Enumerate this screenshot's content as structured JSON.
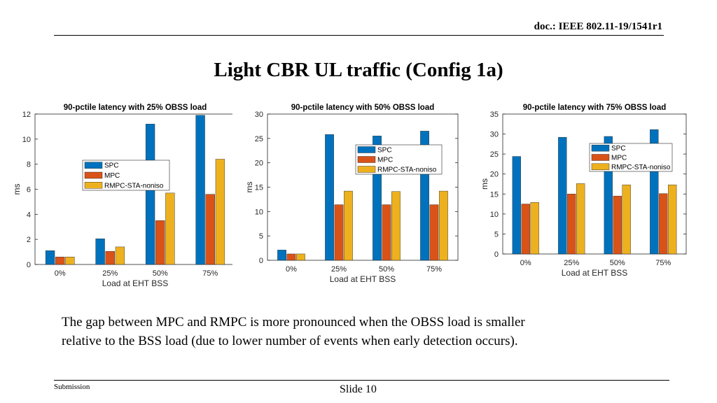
{
  "header": {
    "doc_id": "doc.: IEEE 802.11-19/1541r1"
  },
  "slide": {
    "title": "Light CBR UL traffic (Config 1a)"
  },
  "colors": {
    "spc": "#0072BD",
    "mpc": "#D95319",
    "rmpc": "#EDB120"
  },
  "chart_data": [
    {
      "type": "bar",
      "title": "90-pctile latency with 25% OBSS load",
      "xlabel": "Load at EHT BSS",
      "ylabel": "ms",
      "categories": [
        "0%",
        "25%",
        "50%",
        "75%"
      ],
      "ylim": [
        0,
        12
      ],
      "yticks": [
        "0",
        "2",
        "4",
        "6",
        "8",
        "10",
        "12"
      ],
      "legend_position": "middle-left",
      "series": [
        {
          "name": "SPC",
          "values": [
            1.1,
            2.05,
            11.2,
            11.9
          ]
        },
        {
          "name": "MPC",
          "values": [
            0.6,
            1.05,
            3.5,
            5.6
          ]
        },
        {
          "name": "RMPC-STA-noniso",
          "values": [
            0.6,
            1.4,
            5.7,
            8.4
          ]
        }
      ]
    },
    {
      "type": "bar",
      "title": "90-pctile latency with 50% OBSS load",
      "xlabel": "Load at EHT BSS",
      "ylabel": "ms",
      "categories": [
        "0%",
        "25%",
        "50%",
        "75%"
      ],
      "ylim": [
        0,
        30
      ],
      "yticks": [
        "0",
        "5",
        "10",
        "15",
        "20",
        "25",
        "30"
      ],
      "legend_position": "top-right",
      "series": [
        {
          "name": "SPC",
          "values": [
            2.1,
            25.8,
            25.5,
            26.5
          ]
        },
        {
          "name": "MPC",
          "values": [
            1.3,
            11.4,
            11.4,
            11.4
          ]
        },
        {
          "name": "RMPC-STA-noniso",
          "values": [
            1.3,
            14.2,
            14.1,
            14.2
          ]
        }
      ]
    },
    {
      "type": "bar",
      "title": "90-pctile latency with 75% OBSS load",
      "xlabel": "Load at EHT BSS",
      "ylabel": "ms",
      "categories": [
        "0%",
        "25%",
        "50%",
        "75%"
      ],
      "ylim": [
        0,
        35
      ],
      "yticks": [
        "0",
        "5",
        "10",
        "15",
        "20",
        "25",
        "30",
        "35"
      ],
      "legend_position": "top-right",
      "series": [
        {
          "name": "SPC",
          "values": [
            24.4,
            29.2,
            29.4,
            31.1
          ]
        },
        {
          "name": "MPC",
          "values": [
            12.5,
            15.0,
            14.5,
            15.1
          ]
        },
        {
          "name": "RMPC-STA-noniso",
          "values": [
            12.9,
            17.6,
            17.3,
            17.3
          ]
        }
      ]
    }
  ],
  "caption": {
    "line1": "The gap between MPC and RMPC is more pronounced when the OBSS load is smaller",
    "line2": "relative to the BSS load (due to lower number of events when early detection occurs)."
  },
  "footer": {
    "submission": "Submission",
    "slide_number": "Slide 10"
  }
}
